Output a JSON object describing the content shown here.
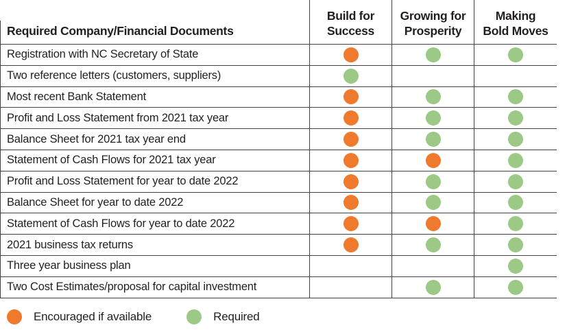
{
  "table": {
    "doc_header": "Required Company/Financial Documents",
    "columns": [
      {
        "id": "build_for_success",
        "label_line1": "Build for",
        "label_line2": "Success"
      },
      {
        "id": "growing_for_prosperity",
        "label_line1": "Growing for",
        "label_line2": "Prosperity"
      },
      {
        "id": "making_bold_moves",
        "label_line1": "Making",
        "label_line2": "Bold Moves"
      }
    ],
    "rows": [
      {
        "label": "Registration with NC Secretary of State",
        "statuses": [
          "encouraged",
          "required",
          "required"
        ]
      },
      {
        "label": "Two reference letters (customers, suppliers)",
        "statuses": [
          "required",
          "none",
          "none"
        ]
      },
      {
        "label": "Most recent Bank Statement",
        "statuses": [
          "encouraged",
          "required",
          "required"
        ]
      },
      {
        "label": "Profit and Loss Statement from 2021 tax year",
        "statuses": [
          "encouraged",
          "required",
          "required"
        ]
      },
      {
        "label": "Balance Sheet for 2021 tax year end",
        "statuses": [
          "encouraged",
          "required",
          "required"
        ]
      },
      {
        "label": "Statement of Cash Flows for 2021 tax year",
        "statuses": [
          "encouraged",
          "encouraged",
          "required"
        ]
      },
      {
        "label": "Profit and Loss Statement for year to date 2022",
        "statuses": [
          "encouraged",
          "required",
          "required"
        ]
      },
      {
        "label": "Balance Sheet for year to date 2022",
        "statuses": [
          "encouraged",
          "required",
          "required"
        ]
      },
      {
        "label": "Statement of Cash Flows for year to date 2022",
        "statuses": [
          "encouraged",
          "encouraged",
          "required"
        ]
      },
      {
        "label": "2021 business tax returns",
        "statuses": [
          "encouraged",
          "required",
          "required"
        ]
      },
      {
        "label": "Three year business plan",
        "statuses": [
          "none",
          "none",
          "required"
        ]
      },
      {
        "label": "Two Cost Estimates/proposal for capital investment",
        "statuses": [
          "none",
          "required",
          "required"
        ]
      }
    ]
  },
  "legend": {
    "items": [
      {
        "status": "encouraged",
        "label": "Encouraged if available"
      },
      {
        "status": "required",
        "label": "Required"
      }
    ]
  },
  "colors": {
    "encouraged": "#EF7A2D",
    "required": "#9CC985",
    "grid_line": "#414141",
    "text": "#231f20"
  }
}
